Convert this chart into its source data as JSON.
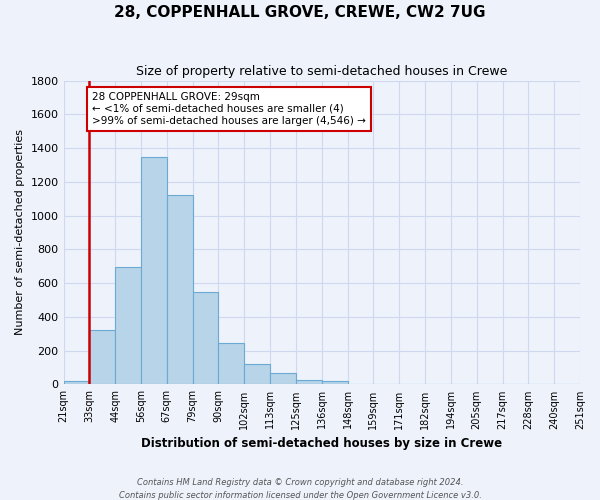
{
  "title": "28, COPPENHALL GROVE, CREWE, CW2 7UG",
  "subtitle": "Size of property relative to semi-detached houses in Crewe",
  "xlabel": "Distribution of semi-detached houses by size in Crewe",
  "ylabel": "Number of semi-detached properties",
  "bar_color": "#b8d4e8",
  "bar_edge_color": "#6aaad4",
  "highlight_line_color": "#cc0000",
  "background_color": "#eef2fb",
  "grid_color": "#d0d8f0",
  "tick_labels": [
    "21sqm",
    "33sqm",
    "44sqm",
    "56sqm",
    "67sqm",
    "79sqm",
    "90sqm",
    "102sqm",
    "113sqm",
    "125sqm",
    "136sqm",
    "148sqm",
    "159sqm",
    "171sqm",
    "182sqm",
    "194sqm",
    "205sqm",
    "217sqm",
    "228sqm",
    "240sqm",
    "251sqm"
  ],
  "bar_values": [
    20,
    325,
    695,
    1345,
    1125,
    550,
    245,
    120,
    68,
    25,
    20,
    0,
    0,
    0,
    0,
    0,
    0,
    0,
    0,
    0
  ],
  "highlight_line_index": 0,
  "ylim": [
    0,
    1800
  ],
  "yticks": [
    0,
    200,
    400,
    600,
    800,
    1000,
    1200,
    1400,
    1600,
    1800
  ],
  "annotation_title": "28 COPPENHALL GROVE: 29sqm",
  "annotation_line1": "← <1% of semi-detached houses are smaller (4)",
  "annotation_line2": ">99% of semi-detached houses are larger (4,546) →",
  "footer_line1": "Contains HM Land Registry data © Crown copyright and database right 2024.",
  "footer_line2": "Contains public sector information licensed under the Open Government Licence v3.0."
}
